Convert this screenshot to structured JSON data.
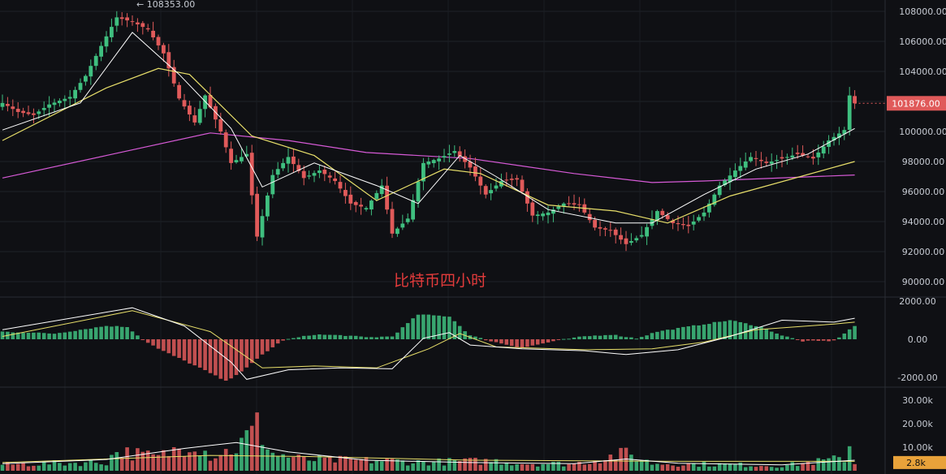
{
  "chart_data": [
    {
      "type": "candlestick",
      "title": "比特币四小时",
      "ylim": [
        89000,
        108800
      ],
      "y_ticks": [
        {
          "value": 108000,
          "label": "108000.00"
        },
        {
          "value": 106000,
          "label": "106000.00"
        },
        {
          "value": 104000,
          "label": "104000.00"
        },
        {
          "value": 102000,
          "label": "102000.00"
        },
        {
          "value": 100000,
          "label": "100000.00"
        },
        {
          "value": 98000,
          "label": "98000.00"
        },
        {
          "value": 96000,
          "label": "96000.00"
        },
        {
          "value": 94000,
          "label": "94000.00"
        },
        {
          "value": 92000,
          "label": "92000.00"
        },
        {
          "value": 90000,
          "label": "90000.00"
        }
      ],
      "high_marker": {
        "value": 108353,
        "label": "108353.00"
      },
      "last_price": {
        "value": 101876,
        "label": "101876.00"
      },
      "grid": true,
      "colors": {
        "up": "#3fbf7f",
        "down": "#e05a5a",
        "ma_fast": "#ffffff",
        "ma_mid": "#e8df6a",
        "ma_slow": "#d65ad6",
        "price_tag": "#e05a5a"
      },
      "close_anchors": [
        [
          0,
          101900
        ],
        [
          3,
          101300
        ],
        [
          6,
          101100
        ],
        [
          9,
          101800
        ],
        [
          13,
          102300
        ],
        [
          16,
          103700
        ],
        [
          19,
          105700
        ],
        [
          22,
          107600
        ],
        [
          25,
          107300
        ],
        [
          28,
          106800
        ],
        [
          31,
          105200
        ],
        [
          34,
          102200
        ],
        [
          37,
          100600
        ],
        [
          39,
          102400
        ],
        [
          42,
          100000
        ],
        [
          44,
          97900
        ],
        [
          47,
          98500
        ],
        [
          49,
          93000
        ],
        [
          52,
          97100
        ],
        [
          55,
          98300
        ],
        [
          58,
          96900
        ],
        [
          61,
          97400
        ],
        [
          64,
          96700
        ],
        [
          67,
          95200
        ],
        [
          70,
          94900
        ],
        [
          73,
          96400
        ],
        [
          75,
          93200
        ],
        [
          78,
          94200
        ],
        [
          81,
          97900
        ],
        [
          84,
          98200
        ],
        [
          87,
          98700
        ],
        [
          90,
          97600
        ],
        [
          93,
          95800
        ],
        [
          96,
          96700
        ],
        [
          99,
          96800
        ],
        [
          102,
          94400
        ],
        [
          105,
          94600
        ],
        [
          108,
          95200
        ],
        [
          111,
          95100
        ],
        [
          114,
          93600
        ],
        [
          117,
          93400
        ],
        [
          120,
          92500
        ],
        [
          123,
          93100
        ],
        [
          126,
          94700
        ],
        [
          129,
          93900
        ],
        [
          132,
          93700
        ],
        [
          135,
          94600
        ],
        [
          138,
          96400
        ],
        [
          141,
          97400
        ],
        [
          144,
          98300
        ],
        [
          147,
          97900
        ],
        [
          150,
          98200
        ],
        [
          153,
          98500
        ],
        [
          156,
          98200
        ],
        [
          159,
          99400
        ],
        [
          162,
          100100
        ],
        [
          163,
          102400
        ],
        [
          164,
          101876
        ]
      ],
      "ma_fast": [
        [
          0,
          100100
        ],
        [
          15,
          101900
        ],
        [
          25,
          106600
        ],
        [
          34,
          103800
        ],
        [
          44,
          100200
        ],
        [
          50,
          96300
        ],
        [
          60,
          97900
        ],
        [
          72,
          96400
        ],
        [
          80,
          95200
        ],
        [
          88,
          98400
        ],
        [
          95,
          97000
        ],
        [
          105,
          94800
        ],
        [
          118,
          93900
        ],
        [
          125,
          93900
        ],
        [
          135,
          95800
        ],
        [
          145,
          97500
        ],
        [
          155,
          98500
        ],
        [
          164,
          100200
        ]
      ],
      "ma_mid": [
        [
          0,
          99400
        ],
        [
          20,
          102900
        ],
        [
          30,
          104200
        ],
        [
          36,
          103800
        ],
        [
          48,
          99700
        ],
        [
          60,
          98400
        ],
        [
          72,
          95400
        ],
        [
          85,
          97500
        ],
        [
          92,
          97200
        ],
        [
          105,
          95100
        ],
        [
          118,
          94700
        ],
        [
          128,
          93900
        ],
        [
          140,
          95700
        ],
        [
          164,
          98000
        ]
      ],
      "ma_slow": [
        [
          0,
          96900
        ],
        [
          20,
          98400
        ],
        [
          40,
          99900
        ],
        [
          55,
          99400
        ],
        [
          70,
          98600
        ],
        [
          90,
          98200
        ],
        [
          110,
          97200
        ],
        [
          125,
          96600
        ],
        [
          135,
          96700
        ],
        [
          164,
          97100
        ]
      ]
    },
    {
      "type": "bar",
      "title": "",
      "ylim": [
        -2300,
        2300
      ],
      "y_ticks": [
        {
          "value": 2000,
          "label": "2000.00"
        },
        {
          "value": 0,
          "label": "0.00"
        },
        {
          "value": -2000,
          "label": "-2000.00"
        }
      ],
      "histogram": [
        [
          0,
          400
        ],
        [
          10,
          300
        ],
        [
          20,
          700
        ],
        [
          24,
          650
        ],
        [
          27,
          0
        ],
        [
          30,
          -500
        ],
        [
          38,
          -1500
        ],
        [
          43,
          -2200
        ],
        [
          47,
          -1500
        ],
        [
          50,
          -800
        ],
        [
          54,
          -50
        ],
        [
          60,
          250
        ],
        [
          66,
          200
        ],
        [
          70,
          100
        ],
        [
          75,
          150
        ],
        [
          80,
          1300
        ],
        [
          86,
          1200
        ],
        [
          90,
          200
        ],
        [
          94,
          -100
        ],
        [
          100,
          -450
        ],
        [
          107,
          -50
        ],
        [
          112,
          150
        ],
        [
          117,
          250
        ],
        [
          122,
          50
        ],
        [
          126,
          400
        ],
        [
          134,
          750
        ],
        [
          140,
          1000
        ],
        [
          146,
          650
        ],
        [
          150,
          200
        ],
        [
          154,
          -100
        ],
        [
          160,
          -80
        ],
        [
          164,
          700
        ]
      ],
      "macd_line": [
        [
          0,
          500
        ],
        [
          25,
          1650
        ],
        [
          35,
          700
        ],
        [
          44,
          -1200
        ],
        [
          47,
          -2100
        ],
        [
          55,
          -1600
        ],
        [
          65,
          -1500
        ],
        [
          75,
          -1550
        ],
        [
          81,
          50
        ],
        [
          86,
          350
        ],
        [
          90,
          -300
        ],
        [
          100,
          -500
        ],
        [
          112,
          -600
        ],
        [
          120,
          -800
        ],
        [
          130,
          -550
        ],
        [
          140,
          150
        ],
        [
          150,
          1000
        ],
        [
          160,
          900
        ],
        [
          164,
          1100
        ]
      ],
      "signal_line": [
        [
          0,
          150
        ],
        [
          25,
          1500
        ],
        [
          40,
          400
        ],
        [
          50,
          -1500
        ],
        [
          60,
          -1400
        ],
        [
          72,
          -1500
        ],
        [
          82,
          -500
        ],
        [
          88,
          300
        ],
        [
          95,
          -400
        ],
        [
          112,
          -550
        ],
        [
          125,
          -500
        ],
        [
          135,
          -150
        ],
        [
          145,
          500
        ],
        [
          160,
          800
        ],
        [
          164,
          900
        ]
      ]
    },
    {
      "type": "bar",
      "title": "",
      "ylim": [
        0,
        34000
      ],
      "y_ticks": [
        {
          "value": 30000,
          "label": "30.00k"
        },
        {
          "value": 20000,
          "label": "20.00k"
        },
        {
          "value": 10000,
          "label": "10.00k"
        }
      ],
      "last_volume": {
        "value": 2800,
        "label": "2.8k"
      },
      "volume_anchors": [
        [
          0,
          2500
        ],
        [
          20,
          3500
        ],
        [
          22,
          8000
        ],
        [
          30,
          5500
        ],
        [
          37,
          12000
        ],
        [
          40,
          6000
        ],
        [
          45,
          9000
        ],
        [
          49,
          18000
        ],
        [
          52,
          7000
        ],
        [
          58,
          4500
        ],
        [
          75,
          4000
        ],
        [
          80,
          3500
        ],
        [
          95,
          4000
        ],
        [
          100,
          3000
        ],
        [
          110,
          2800
        ],
        [
          120,
          7000
        ],
        [
          125,
          3000
        ],
        [
          140,
          2500
        ],
        [
          150,
          2000
        ],
        [
          162,
          5000
        ],
        [
          163,
          11000
        ],
        [
          164,
          2800
        ]
      ],
      "vol_ma_fast": [
        [
          0,
          3000
        ],
        [
          20,
          4800
        ],
        [
          35,
          9500
        ],
        [
          45,
          12000
        ],
        [
          55,
          8000
        ],
        [
          70,
          4500
        ],
        [
          90,
          3500
        ],
        [
          110,
          3000
        ],
        [
          120,
          5000
        ],
        [
          130,
          3200
        ],
        [
          150,
          2500
        ],
        [
          164,
          4500
        ]
      ],
      "vol_ma_slow": [
        [
          0,
          3500
        ],
        [
          40,
          6500
        ],
        [
          60,
          6000
        ],
        [
          90,
          4500
        ],
        [
          130,
          4000
        ],
        [
          164,
          4000
        ]
      ]
    }
  ]
}
